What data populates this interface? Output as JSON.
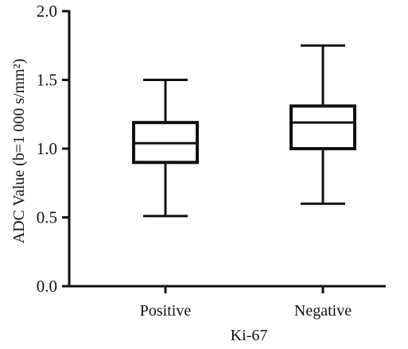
{
  "chart_data": {
    "type": "boxplot",
    "title": "",
    "xlabel": "Ki-67",
    "ylabel": "ADC Value (b=1 000 s/mm²)",
    "ylim": [
      0.0,
      2.0
    ],
    "yticks": [
      "0.0",
      "0.5",
      "1.0",
      "1.5",
      "2.0"
    ],
    "grid": false,
    "categories": [
      "Positive",
      "Negative"
    ],
    "boxes": [
      {
        "category": "Positive",
        "min": 0.51,
        "q1": 0.9,
        "median": 1.04,
        "q3": 1.19,
        "max": 1.5
      },
      {
        "category": "Negative",
        "min": 0.6,
        "q1": 1.0,
        "median": 1.19,
        "q3": 1.31,
        "max": 1.75
      }
    ],
    "colors": {
      "stroke": "#111111",
      "fill": "#ffffff"
    }
  }
}
